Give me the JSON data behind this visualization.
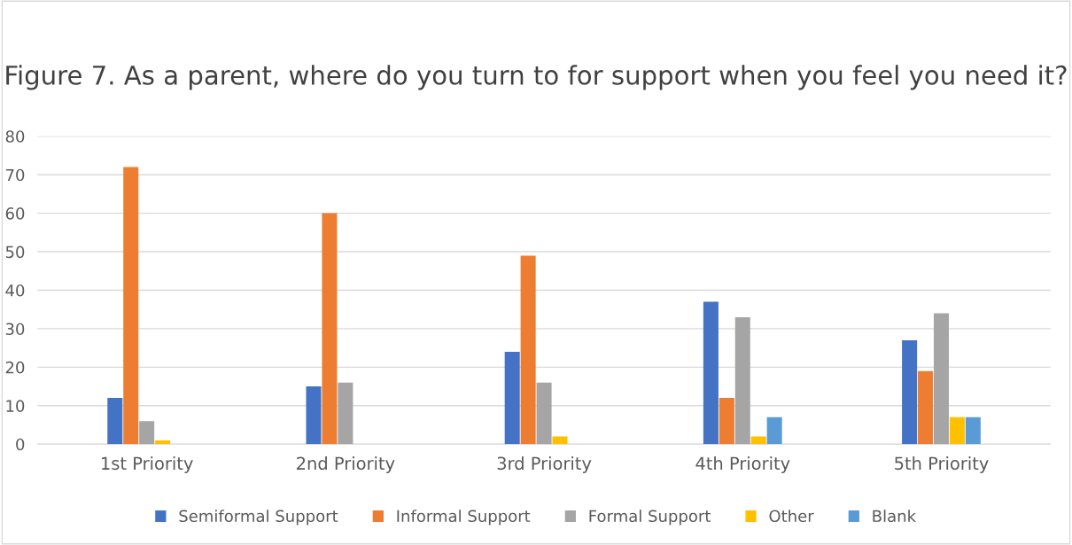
{
  "chart_data": {
    "type": "bar",
    "title": "Figure 7. As a parent, where do you turn to for support when you feel you need it?",
    "categories": [
      "1st Priority",
      "2nd Priority",
      "3rd Priority",
      "4th Priority",
      "5th Priority"
    ],
    "series": [
      {
        "name": "Semiformal Support",
        "color": "#4472c4",
        "values": [
          12,
          15,
          24,
          37,
          27
        ]
      },
      {
        "name": "Informal Support",
        "color": "#ed7d31",
        "values": [
          72,
          60,
          49,
          12,
          19
        ]
      },
      {
        "name": "Formal Support",
        "color": "#a5a5a5",
        "values": [
          6,
          16,
          16,
          33,
          34
        ]
      },
      {
        "name": "Other",
        "color": "#ffc000",
        "values": [
          1,
          0,
          2,
          2,
          7
        ]
      },
      {
        "name": "Blank",
        "color": "#5b9bd5",
        "values": [
          0,
          0,
          0,
          7,
          7
        ]
      }
    ],
    "ylim": [
      0,
      80
    ],
    "yticks": [
      0,
      10,
      20,
      30,
      40,
      50,
      60,
      70,
      80
    ],
    "grid": "y",
    "legend": "bottom"
  }
}
